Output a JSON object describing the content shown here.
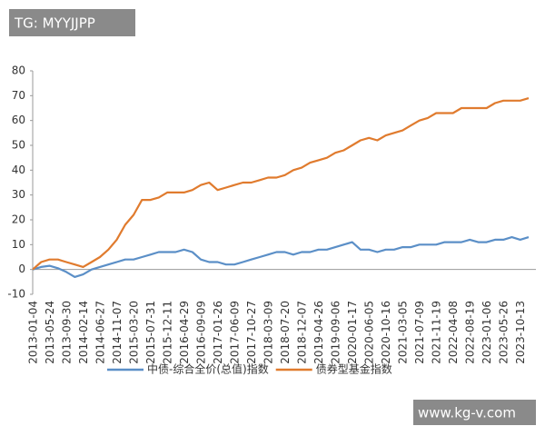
{
  "chart_data": {
    "type": "line",
    "categories": [
      "2013-01-04",
      null,
      "2013-05-24",
      null,
      "2013-09-30",
      null,
      "2014-02-14",
      null,
      "2014-06-27",
      null,
      "2014-11-07",
      null,
      "2015-03-20",
      null,
      "2015-07-31",
      null,
      "2015-12-11",
      null,
      "2016-04-29",
      null,
      "2016-09-09",
      null,
      "2017-01-26",
      null,
      "2017-06-09",
      null,
      "2017-10-27",
      null,
      "2018-03-09",
      null,
      "2018-07-20",
      null,
      "2018-12-07",
      null,
      "2019-04-26",
      null,
      "2019-09-06",
      null,
      "2020-01-17",
      null,
      "2020-06-05",
      null,
      "2020-10-16",
      null,
      "2021-03-05",
      null,
      "2021-07-09",
      null,
      "2021-11-19",
      null,
      "2022-04-08",
      null,
      "2022-08-19",
      null,
      "2023-01-06",
      null,
      "2023-05-26",
      null,
      "2023-10-13",
      null
    ],
    "series": [
      {
        "name": "中债-综合全价(总值)指数",
        "color": "#5b8fc7",
        "values": [
          0,
          1,
          1.5,
          0.5,
          -1,
          -3,
          -2,
          0,
          1,
          2,
          3,
          4,
          4,
          5,
          6,
          7,
          7,
          7,
          8,
          7,
          4,
          3,
          3,
          2,
          2,
          3,
          4,
          5,
          6,
          7,
          7,
          6,
          7,
          7,
          8,
          8,
          9,
          10,
          11,
          8,
          8,
          7,
          8,
          8,
          9,
          9,
          10,
          10,
          10,
          11,
          11,
          11,
          12,
          11,
          11,
          12,
          12,
          13,
          12,
          13
        ]
      },
      {
        "name": "债券型基金指数",
        "color": "#e07b2e",
        "values": [
          0,
          3,
          4,
          4,
          3,
          2,
          1,
          3,
          5,
          8,
          12,
          18,
          22,
          28,
          28,
          29,
          31,
          31,
          31,
          32,
          34,
          35,
          32,
          33,
          34,
          35,
          35,
          36,
          37,
          37,
          38,
          40,
          41,
          43,
          44,
          45,
          47,
          48,
          50,
          52,
          53,
          52,
          54,
          55,
          56,
          58,
          60,
          61,
          63,
          63,
          63,
          65,
          65,
          65,
          65,
          67,
          68,
          68,
          68,
          69
        ]
      }
    ],
    "ylim": [
      -10,
      80
    ],
    "yticks": [
      -10,
      0,
      10,
      20,
      30,
      40,
      50,
      60,
      70,
      80
    ],
    "grid": false,
    "legend": "bottom"
  },
  "overlays": {
    "top": "TG: MYYJJPP",
    "bottom": "www.kg-v.com"
  }
}
